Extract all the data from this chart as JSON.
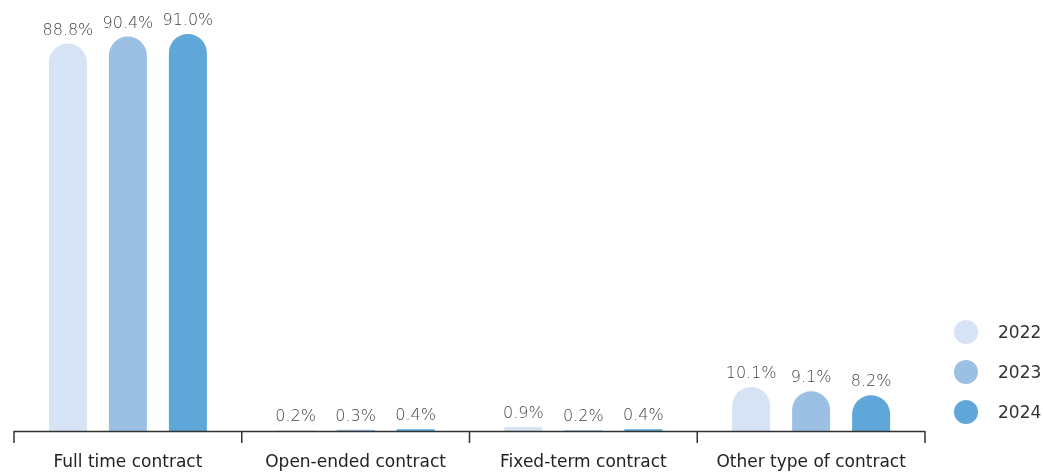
{
  "chart_data": {
    "type": "bar",
    "categories": [
      "Full time contract",
      "Open-ended contract",
      "Fixed-term contract",
      "Other type of contract"
    ],
    "series": [
      {
        "name": "2022",
        "color": "#d6e3f4",
        "values": [
          88.8,
          0.2,
          0.9,
          10.1
        ],
        "value_labels": [
          "88.8%",
          "0.2%",
          "0.9%",
          "10.1%"
        ]
      },
      {
        "name": "2023",
        "color": "#9bc0e4",
        "values": [
          90.4,
          0.3,
          0.2,
          9.1
        ],
        "value_labels": [
          "90.4%",
          "0.3%",
          "0.2%",
          "9.1%"
        ]
      },
      {
        "name": "2024",
        "color": "#5ea7d8",
        "values": [
          91.0,
          0.4,
          0.4,
          8.2
        ],
        "value_labels": [
          "91.0%",
          "0.4%",
          "0.4%",
          "8.2%"
        ]
      }
    ],
    "legend": "right"
  }
}
